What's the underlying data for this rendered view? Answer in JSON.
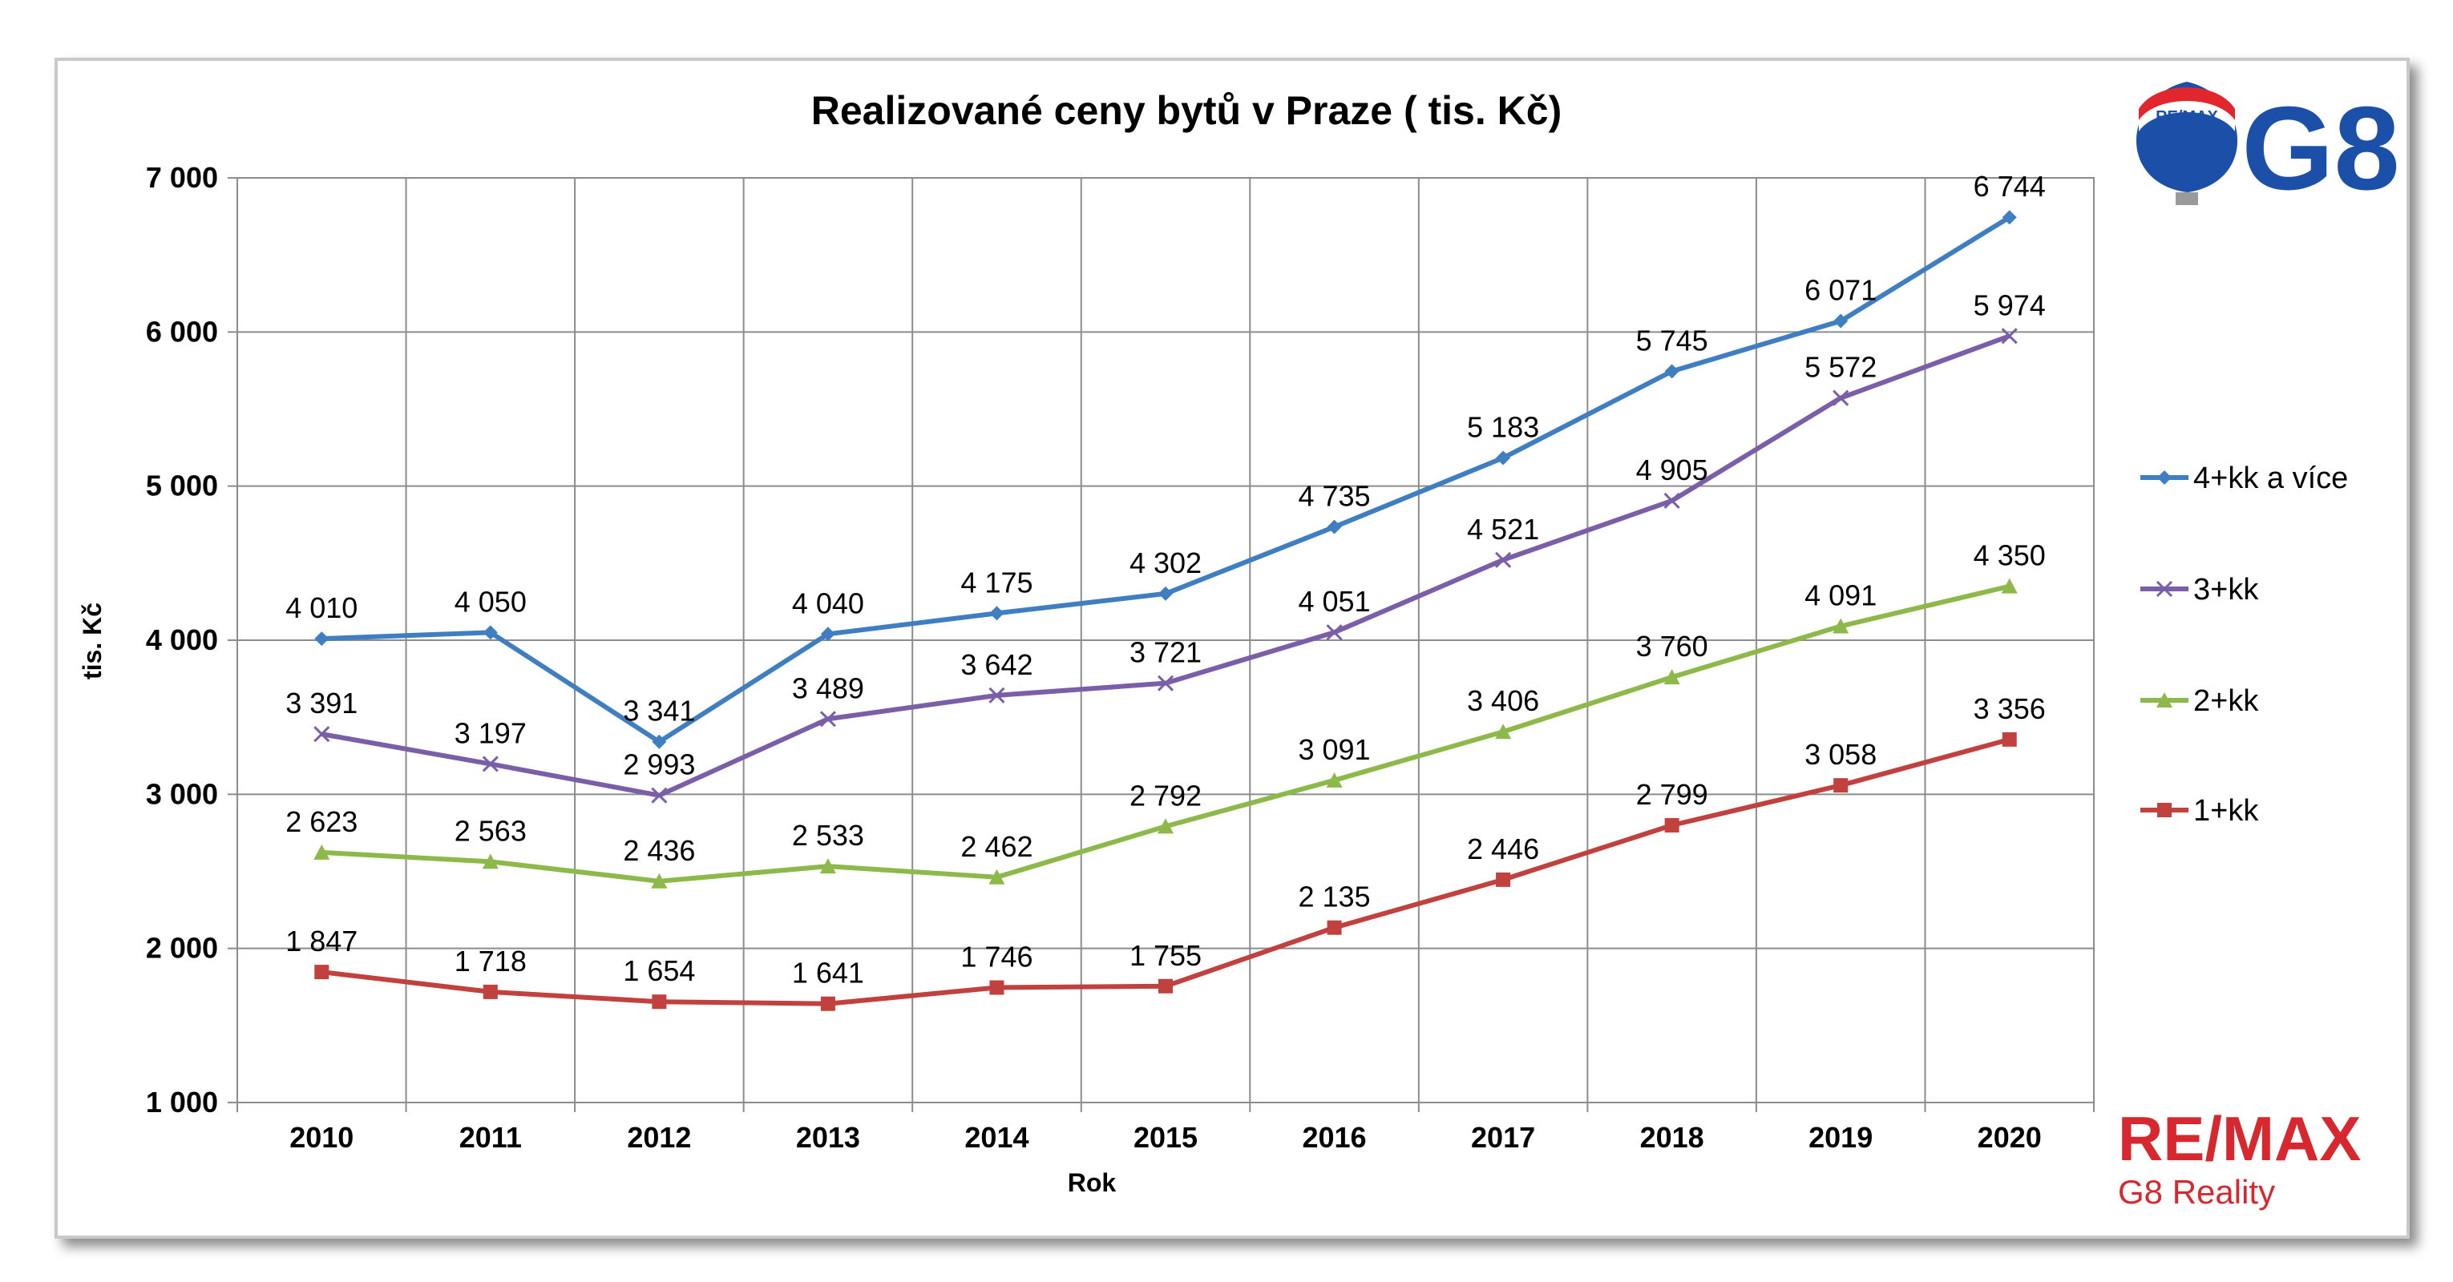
{
  "chart_data": {
    "type": "line",
    "title": "Realizované ceny bytů v Praze ( tis. Kč)",
    "xlabel": "Rok",
    "ylabel": "tis. Kč",
    "x": [
      "2010",
      "2011",
      "2012",
      "2013",
      "2014",
      "2015",
      "2016",
      "2017",
      "2018",
      "2019",
      "2020"
    ],
    "ylim": [
      1000,
      7000
    ],
    "yticks": [
      1000,
      2000,
      3000,
      4000,
      5000,
      6000,
      7000
    ],
    "ytick_labels": [
      "1 000",
      "2 000",
      "3 000",
      "4 000",
      "5 000",
      "6 000",
      "7 000"
    ],
    "grid": true,
    "legend_position": "right",
    "series": [
      {
        "name": "4+kk a více",
        "color": "#3f7ec0",
        "marker": "diamond",
        "values": [
          4010,
          4050,
          3341,
          4040,
          4175,
          4302,
          4735,
          5183,
          5745,
          6071,
          6744
        ],
        "labels": [
          "4 010",
          "4 050",
          "3 341",
          "4 040",
          "4 175",
          "4 302",
          "4 735",
          "5 183",
          "5 745",
          "6 071",
          "6 744"
        ]
      },
      {
        "name": "3+kk",
        "color": "#7b5ea8",
        "marker": "x",
        "values": [
          3391,
          3197,
          2993,
          3489,
          3642,
          3721,
          4051,
          4521,
          4905,
          5572,
          5974
        ],
        "labels": [
          "3 391",
          "3 197",
          "2 993",
          "3 489",
          "3 642",
          "3 721",
          "4 051",
          "4 521",
          "4 905",
          "5 572",
          "5 974"
        ]
      },
      {
        "name": "2+kk",
        "color": "#8db84a",
        "marker": "triangle",
        "values": [
          2623,
          2563,
          2436,
          2533,
          2462,
          2792,
          3091,
          3406,
          3760,
          4091,
          4350
        ],
        "labels": [
          "2 623",
          "2 563",
          "2 436",
          "2 533",
          "2 462",
          "2 792",
          "3 091",
          "3 406",
          "3 760",
          "4 091",
          "4 350"
        ]
      },
      {
        "name": "1+kk",
        "color": "#c0413e",
        "marker": "square",
        "values": [
          1847,
          1718,
          1654,
          1641,
          1746,
          1755,
          2135,
          2446,
          2799,
          3058,
          3356
        ],
        "labels": [
          "1 847",
          "1 718",
          "1 654",
          "1 641",
          "1 746",
          "1 755",
          "2 135",
          "2 446",
          "2 799",
          "3 058",
          "3 356"
        ]
      }
    ]
  },
  "logos": {
    "top": {
      "text": "G8",
      "balloon_text": "RE/MAX",
      "colors": {
        "blue": "#1b4fa8",
        "red": "#e1262d"
      }
    },
    "bottom": {
      "brand": "RE/MAX",
      "subtitle": "G8 Reality",
      "color": "#d7282f"
    }
  }
}
